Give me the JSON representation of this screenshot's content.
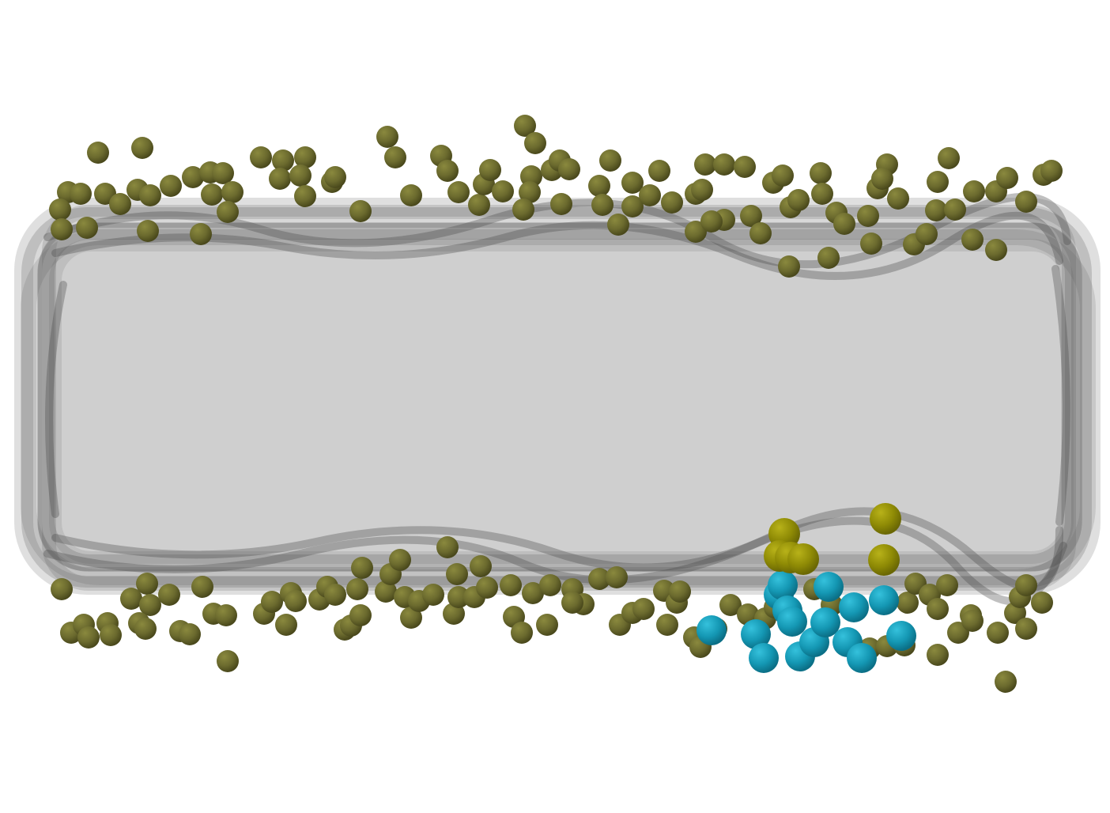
{
  "scene": {
    "background": "#ffffff",
    "membrane_fill": "#cfcfcf",
    "membrane_layer_fill": "#5a5a5a",
    "colors": {
      "olive": "#6b6a2e",
      "olive_dark": "#4a491c",
      "olive_light": "#8a893e",
      "cyan": "#1497b3",
      "cyan_dark": "#0b6f86",
      "cyan_light": "#35c1dc",
      "yellow": "#8e8a05",
      "yellow_dark": "#6a6704",
      "yellow_light": "#b8b219"
    },
    "icons": {
      "particle": "sphere-icon"
    }
  }
}
